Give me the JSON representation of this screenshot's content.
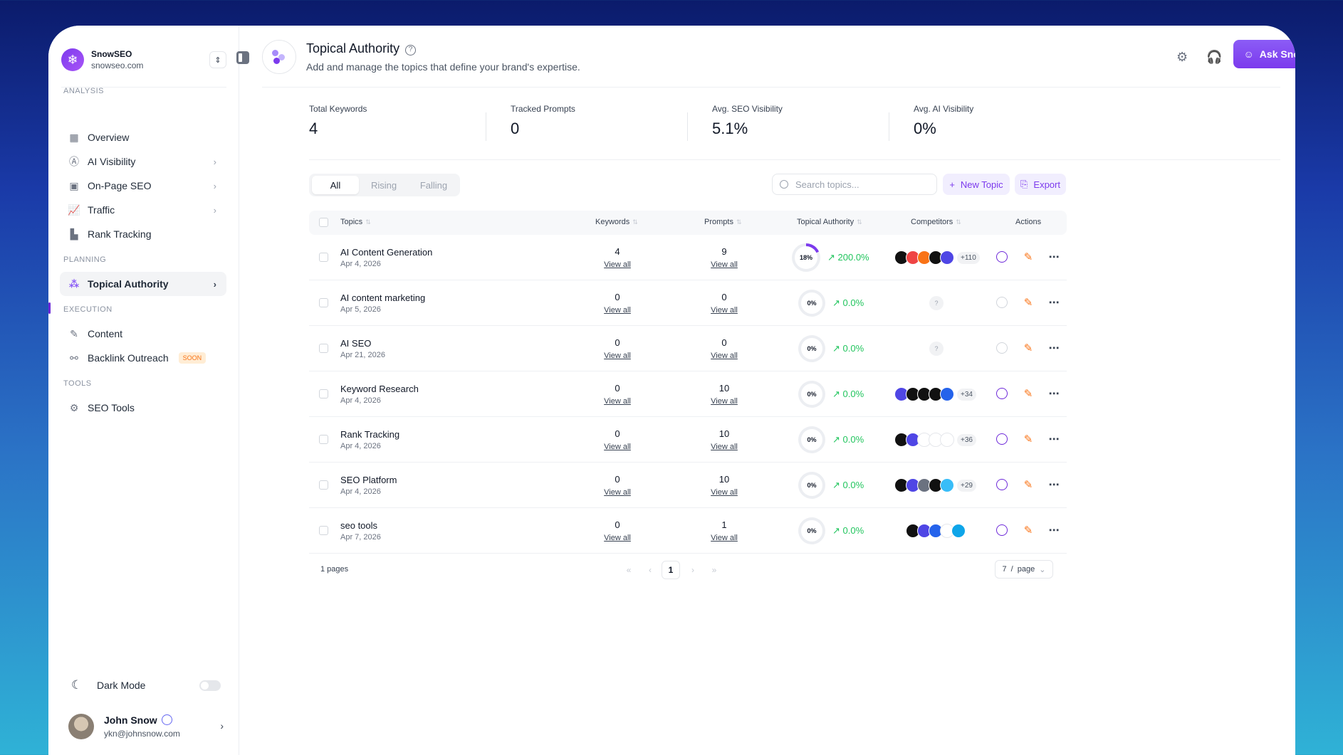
{
  "brand": {
    "name": "SnowSEO",
    "domain": "snowseo.com"
  },
  "sidebar": {
    "sections": {
      "analysis": "ANALYSIS",
      "planning": "PLANNING",
      "execution": "EXECUTION",
      "tools": "TOOLS"
    },
    "items": [
      {
        "label": "Overview",
        "icon": "overview-icon"
      },
      {
        "label": "AI Visibility",
        "icon": "ai-icon"
      },
      {
        "label": "On-Page SEO",
        "icon": "onpage-icon"
      },
      {
        "label": "Traffic",
        "icon": "chart-icon"
      },
      {
        "label": "Rank Tracking",
        "icon": "podium-icon"
      },
      {
        "label": "Topical Authority",
        "icon": "topics-icon"
      },
      {
        "label": "Content",
        "icon": "feather-icon"
      },
      {
        "label": "Backlink Outreach",
        "icon": "link-icon",
        "badge": "SOON"
      },
      {
        "label": "SEO Tools",
        "icon": "gear-icon"
      }
    ],
    "dark_mode_label": "Dark Mode",
    "user": {
      "name": "John Snow",
      "email": "ykn@johnsnow.com"
    }
  },
  "header": {
    "title": "Topical Authority",
    "subtitle": "Add and manage the topics that define your brand's expertise.",
    "ask_button": "Ask Snowy"
  },
  "stats": [
    {
      "label": "Total Keywords",
      "value": "4"
    },
    {
      "label": "Tracked Prompts",
      "value": "0"
    },
    {
      "label": "Avg. SEO Visibility",
      "value": "5.1%"
    },
    {
      "label": "Avg. AI Visibility",
      "value": "0%"
    }
  ],
  "filters": {
    "tabs": [
      "All",
      "Rising",
      "Falling"
    ],
    "active": "All"
  },
  "search": {
    "placeholder": "Search topics...",
    "value": ""
  },
  "buttons": {
    "new_topic": "New Topic",
    "export": "Export"
  },
  "table": {
    "columns": [
      "Topics",
      "Keywords",
      "Prompts",
      "Topical Authority",
      "Competitors",
      "Actions"
    ],
    "view_all": "View all",
    "rows": [
      {
        "topic": "AI Content Generation",
        "date": "Apr 4, 2026",
        "keywords": "4",
        "prompts": "9",
        "authority": "18%",
        "authority_fraction": 0.18,
        "change": "200.0%",
        "competitors_more": "+110",
        "has_competitors": true
      },
      {
        "topic": "AI content marketing",
        "date": "Apr 5, 2026",
        "keywords": "0",
        "prompts": "0",
        "authority": "0%",
        "authority_fraction": 0,
        "change": "0.0%",
        "competitors_more": "",
        "has_competitors": false
      },
      {
        "topic": "AI SEO",
        "date": "Apr 21, 2026",
        "keywords": "0",
        "prompts": "0",
        "authority": "0%",
        "authority_fraction": 0,
        "change": "0.0%",
        "competitors_more": "",
        "has_competitors": false
      },
      {
        "topic": "Keyword Research",
        "date": "Apr 4, 2026",
        "keywords": "0",
        "prompts": "10",
        "authority": "0%",
        "authority_fraction": 0,
        "change": "0.0%",
        "competitors_more": "+34",
        "has_competitors": true
      },
      {
        "topic": "Rank Tracking",
        "date": "Apr 4, 2026",
        "keywords": "0",
        "prompts": "10",
        "authority": "0%",
        "authority_fraction": 0,
        "change": "0.0%",
        "competitors_more": "+36",
        "has_competitors": true
      },
      {
        "topic": "SEO Platform",
        "date": "Apr 4, 2026",
        "keywords": "0",
        "prompts": "10",
        "authority": "0%",
        "authority_fraction": 0,
        "change": "0.0%",
        "competitors_more": "+29",
        "has_competitors": true
      },
      {
        "topic": "seo tools",
        "date": "Apr 7, 2026",
        "keywords": "0",
        "prompts": "1",
        "authority": "0%",
        "authority_fraction": 0,
        "change": "0.0%",
        "competitors_more": "",
        "has_competitors": true
      }
    ]
  },
  "pagination": {
    "pages_label": "1 pages",
    "current_page": "1",
    "page_size": "7",
    "page_size_unit": "page"
  },
  "colors": {
    "accent": "#7c3aed",
    "positive": "#22c55e",
    "feather": "#f97316"
  }
}
